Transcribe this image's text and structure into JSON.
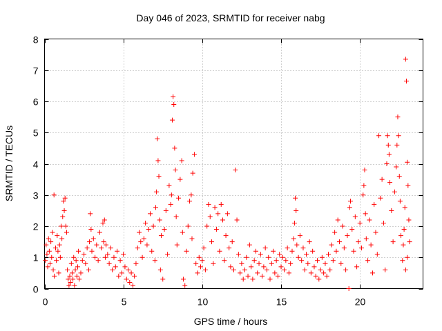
{
  "chart_data": {
    "type": "scatter",
    "title": "Day 046 of 2023, SRMTID for receiver nabg",
    "xlabel": "GPS time / hours",
    "ylabel": "SRMTID / TECUs",
    "xlim": [
      0,
      24
    ],
    "ylim": [
      0,
      8
    ],
    "xticks": [
      0,
      5,
      10,
      15,
      20
    ],
    "xtick_labels": [
      "0",
      "5",
      "10",
      "15",
      "20"
    ],
    "yticks": [
      0,
      1,
      2,
      3,
      4,
      5,
      6,
      7,
      8
    ],
    "ytick_labels": [
      "0",
      "1",
      "2",
      "3",
      "4",
      "5",
      "6",
      "7",
      "8"
    ],
    "grid": true,
    "marker": "+",
    "series": [
      {
        "name": "SRMTID",
        "color": "#ff0000",
        "points": [
          [
            0.05,
            0.9
          ],
          [
            0.1,
            1.4
          ],
          [
            0.15,
            1.1
          ],
          [
            0.2,
            0.7
          ],
          [
            0.25,
            1.6
          ],
          [
            0.3,
            1.2
          ],
          [
            0.35,
            0.8
          ],
          [
            0.4,
            1.5
          ],
          [
            0.45,
            1.0
          ],
          [
            0.5,
            1.8
          ],
          [
            0.55,
            0.6
          ],
          [
            0.6,
            3.0
          ],
          [
            0.62,
            0.4
          ],
          [
            0.7,
            1.3
          ],
          [
            0.75,
            0.9
          ],
          [
            0.8,
            1.7
          ],
          [
            0.85,
            1.2
          ],
          [
            0.9,
            0.5
          ],
          [
            0.95,
            1.4
          ],
          [
            1.0,
            1.0
          ],
          [
            1.05,
            2.0
          ],
          [
            1.1,
            1.6
          ],
          [
            1.15,
            2.3
          ],
          [
            1.2,
            2.8
          ],
          [
            1.25,
            2.5
          ],
          [
            1.3,
            2.9
          ],
          [
            1.35,
            2.0
          ],
          [
            1.4,
            1.8
          ],
          [
            1.45,
            0.6
          ],
          [
            1.5,
            0.3
          ],
          [
            1.55,
            0.1
          ],
          [
            1.6,
            0.4
          ],
          [
            1.65,
            0.2
          ],
          [
            1.7,
            0.8
          ],
          [
            1.75,
            0.5
          ],
          [
            1.8,
            0.3
          ],
          [
            1.85,
            1.0
          ],
          [
            1.9,
            0.1
          ],
          [
            1.95,
            0.6
          ],
          [
            2.0,
            0.9
          ],
          [
            2.05,
            0.4
          ],
          [
            2.1,
            0.7
          ],
          [
            2.15,
            1.2
          ],
          [
            2.2,
            0.3
          ],
          [
            2.3,
            0.5
          ],
          [
            2.4,
            0.9
          ],
          [
            2.5,
            1.1
          ],
          [
            2.6,
            0.8
          ],
          [
            2.7,
            1.3
          ],
          [
            2.8,
            0.6
          ],
          [
            2.85,
            1.5
          ],
          [
            2.9,
            2.4
          ],
          [
            2.95,
            1.9
          ],
          [
            3.0,
            1.2
          ],
          [
            3.1,
            1.6
          ],
          [
            3.2,
            1.0
          ],
          [
            3.3,
            1.4
          ],
          [
            3.4,
            0.9
          ],
          [
            3.5,
            1.8
          ],
          [
            3.6,
            1.3
          ],
          [
            3.7,
            2.1
          ],
          [
            3.75,
            1.5
          ],
          [
            3.8,
            2.2
          ],
          [
            3.85,
            1.0
          ],
          [
            3.9,
            1.4
          ],
          [
            4.0,
            1.1
          ],
          [
            4.1,
            0.8
          ],
          [
            4.2,
            1.3
          ],
          [
            4.3,
            0.6
          ],
          [
            4.4,
            1.0
          ],
          [
            4.5,
            0.7
          ],
          [
            4.6,
            1.2
          ],
          [
            4.7,
            0.4
          ],
          [
            4.8,
            0.9
          ],
          [
            4.9,
            0.5
          ],
          [
            5.0,
            1.1
          ],
          [
            5.1,
            0.7
          ],
          [
            5.2,
            0.3
          ],
          [
            5.3,
            0.6
          ],
          [
            5.4,
            0.2
          ],
          [
            5.5,
            0.5
          ],
          [
            5.6,
            0.1
          ],
          [
            5.7,
            0.4
          ],
          [
            5.8,
            0.8
          ],
          [
            5.9,
            1.3
          ],
          [
            6.0,
            1.8
          ],
          [
            6.1,
            1.5
          ],
          [
            6.2,
            1.0
          ],
          [
            6.3,
            1.6
          ],
          [
            6.4,
            2.1
          ],
          [
            6.5,
            1.4
          ],
          [
            6.6,
            1.9
          ],
          [
            6.7,
            2.4
          ],
          [
            6.8,
            1.2
          ],
          [
            6.9,
            2.0
          ],
          [
            7.0,
            0.9
          ],
          [
            7.05,
            2.6
          ],
          [
            7.1,
            3.1
          ],
          [
            7.15,
            4.8
          ],
          [
            7.2,
            4.1
          ],
          [
            7.25,
            3.6
          ],
          [
            7.3,
            2.2
          ],
          [
            7.35,
            0.6
          ],
          [
            7.4,
            1.7
          ],
          [
            7.5,
            0.3
          ],
          [
            7.6,
            1.9
          ],
          [
            7.7,
            2.5
          ],
          [
            7.8,
            1.1
          ],
          [
            7.9,
            3.3
          ],
          [
            8.0,
            2.7
          ],
          [
            8.05,
            3.0
          ],
          [
            8.1,
            5.4
          ],
          [
            8.15,
            6.15
          ],
          [
            8.2,
            5.9
          ],
          [
            8.25,
            4.5
          ],
          [
            8.3,
            3.8
          ],
          [
            8.35,
            2.3
          ],
          [
            8.4,
            1.4
          ],
          [
            8.5,
            2.9
          ],
          [
            8.6,
            3.5
          ],
          [
            8.7,
            4.1
          ],
          [
            8.75,
            1.8
          ],
          [
            8.8,
            0.3
          ],
          [
            8.9,
            0.1
          ],
          [
            9.0,
            1.2
          ],
          [
            9.1,
            2.0
          ],
          [
            9.2,
            2.8
          ],
          [
            9.3,
            3.0
          ],
          [
            9.35,
            1.6
          ],
          [
            9.4,
            3.7
          ],
          [
            9.5,
            4.3
          ],
          [
            9.6,
            0.8
          ],
          [
            9.7,
            0.5
          ],
          [
            9.8,
            1.0
          ],
          [
            9.9,
            0.7
          ],
          [
            10.0,
            0.9
          ],
          [
            10.1,
            1.3
          ],
          [
            10.2,
            0.6
          ],
          [
            10.3,
            2.0
          ],
          [
            10.4,
            2.7
          ],
          [
            10.5,
            2.3
          ],
          [
            10.6,
            1.5
          ],
          [
            10.7,
            0.8
          ],
          [
            10.8,
            2.6
          ],
          [
            10.9,
            1.9
          ],
          [
            11.0,
            2.4
          ],
          [
            11.1,
            1.2
          ],
          [
            11.2,
            2.7
          ],
          [
            11.3,
            2.2
          ],
          [
            11.4,
            0.9
          ],
          [
            11.5,
            1.7
          ],
          [
            11.6,
            2.4
          ],
          [
            11.7,
            1.3
          ],
          [
            11.8,
            0.7
          ],
          [
            11.9,
            1.5
          ],
          [
            12.0,
            0.6
          ],
          [
            12.1,
            3.8
          ],
          [
            12.2,
            2.2
          ],
          [
            12.3,
            1.1
          ],
          [
            12.4,
            0.5
          ],
          [
            12.5,
            0.8
          ],
          [
            12.6,
            0.3
          ],
          [
            12.7,
            0.6
          ],
          [
            12.8,
            1.0
          ],
          [
            12.9,
            0.4
          ],
          [
            13.0,
            1.4
          ],
          [
            13.1,
            0.7
          ],
          [
            13.2,
            0.3
          ],
          [
            13.3,
            0.9
          ],
          [
            13.4,
            1.2
          ],
          [
            13.5,
            0.5
          ],
          [
            13.6,
            0.8
          ],
          [
            13.7,
            1.1
          ],
          [
            13.8,
            0.4
          ],
          [
            13.9,
            0.7
          ],
          [
            14.0,
            1.3
          ],
          [
            14.1,
            0.6
          ],
          [
            14.2,
            1.0
          ],
          [
            14.3,
            0.3
          ],
          [
            14.4,
            0.8
          ],
          [
            14.5,
            1.2
          ],
          [
            14.6,
            0.5
          ],
          [
            14.7,
            0.9
          ],
          [
            14.8,
            0.4
          ],
          [
            14.9,
            1.1
          ],
          [
            15.0,
            0.7
          ],
          [
            15.1,
            1.0
          ],
          [
            15.2,
            0.6
          ],
          [
            15.3,
            0.9
          ],
          [
            15.4,
            1.3
          ],
          [
            15.5,
            0.5
          ],
          [
            15.6,
            0.8
          ],
          [
            15.7,
            1.2
          ],
          [
            15.8,
            1.6
          ],
          [
            15.85,
            2.1
          ],
          [
            15.9,
            2.9
          ],
          [
            15.95,
            2.5
          ],
          [
            16.0,
            1.4
          ],
          [
            16.1,
            1.0
          ],
          [
            16.2,
            1.7
          ],
          [
            16.3,
            0.9
          ],
          [
            16.4,
            1.3
          ],
          [
            16.5,
            0.6
          ],
          [
            16.6,
            1.1
          ],
          [
            16.7,
            0.8
          ],
          [
            16.8,
            1.5
          ],
          [
            16.9,
            0.5
          ],
          [
            17.0,
            1.2
          ],
          [
            17.1,
            0.7
          ],
          [
            17.2,
            0.4
          ],
          [
            17.3,
            0.9
          ],
          [
            17.4,
            0.3
          ],
          [
            17.5,
            0.6
          ],
          [
            17.6,
            1.0
          ],
          [
            17.7,
            0.5
          ],
          [
            17.8,
            0.8
          ],
          [
            17.9,
            0.4
          ],
          [
            18.0,
            1.1
          ],
          [
            18.1,
            0.6
          ],
          [
            18.2,
            1.4
          ],
          [
            18.3,
            0.9
          ],
          [
            18.4,
            1.8
          ],
          [
            18.5,
            1.2
          ],
          [
            18.6,
            2.2
          ],
          [
            18.7,
            1.5
          ],
          [
            18.8,
            0.8
          ],
          [
            18.9,
            2.0
          ],
          [
            19.0,
            1.3
          ],
          [
            19.1,
            0.6
          ],
          [
            19.2,
            1.7
          ],
          [
            19.3,
            0.0
          ],
          [
            19.35,
            2.6
          ],
          [
            19.4,
            2.8
          ],
          [
            19.5,
            1.9
          ],
          [
            19.6,
            1.2
          ],
          [
            19.7,
            2.3
          ],
          [
            19.8,
            0.7
          ],
          [
            19.9,
            1.5
          ],
          [
            20.0,
            2.1
          ],
          [
            20.1,
            1.3
          ],
          [
            20.2,
            3.0
          ],
          [
            20.25,
            3.3
          ],
          [
            20.3,
            3.8
          ],
          [
            20.35,
            2.4
          ],
          [
            20.4,
            1.6
          ],
          [
            20.5,
            0.9
          ],
          [
            20.6,
            2.2
          ],
          [
            20.7,
            1.4
          ],
          [
            20.8,
            0.5
          ],
          [
            20.9,
            2.7
          ],
          [
            21.0,
            1.8
          ],
          [
            21.1,
            1.1
          ],
          [
            21.2,
            4.9
          ],
          [
            21.3,
            2.9
          ],
          [
            21.4,
            3.5
          ],
          [
            21.5,
            2.1
          ],
          [
            21.6,
            0.6
          ],
          [
            21.7,
            4.0
          ],
          [
            21.75,
            4.9
          ],
          [
            21.8,
            4.6
          ],
          [
            21.85,
            4.3
          ],
          [
            21.9,
            3.4
          ],
          [
            22.0,
            2.5
          ],
          [
            22.1,
            1.5
          ],
          [
            22.2,
            3.1
          ],
          [
            22.3,
            3.9
          ],
          [
            22.35,
            4.6
          ],
          [
            22.4,
            5.5
          ],
          [
            22.45,
            4.9
          ],
          [
            22.5,
            3.6
          ],
          [
            22.55,
            2.8
          ],
          [
            22.6,
            1.7
          ],
          [
            22.7,
            0.9
          ],
          [
            22.75,
            1.4
          ],
          [
            22.8,
            1.9
          ],
          [
            22.85,
            2.6
          ],
          [
            22.9,
            7.35
          ],
          [
            22.95,
            6.65
          ],
          [
            23.0,
            4.05
          ],
          [
            23.05,
            3.3
          ],
          [
            23.1,
            2.2
          ],
          [
            23.15,
            1.5
          ],
          [
            23.0,
            1.0
          ],
          [
            22.9,
            0.6
          ]
        ]
      }
    ]
  }
}
